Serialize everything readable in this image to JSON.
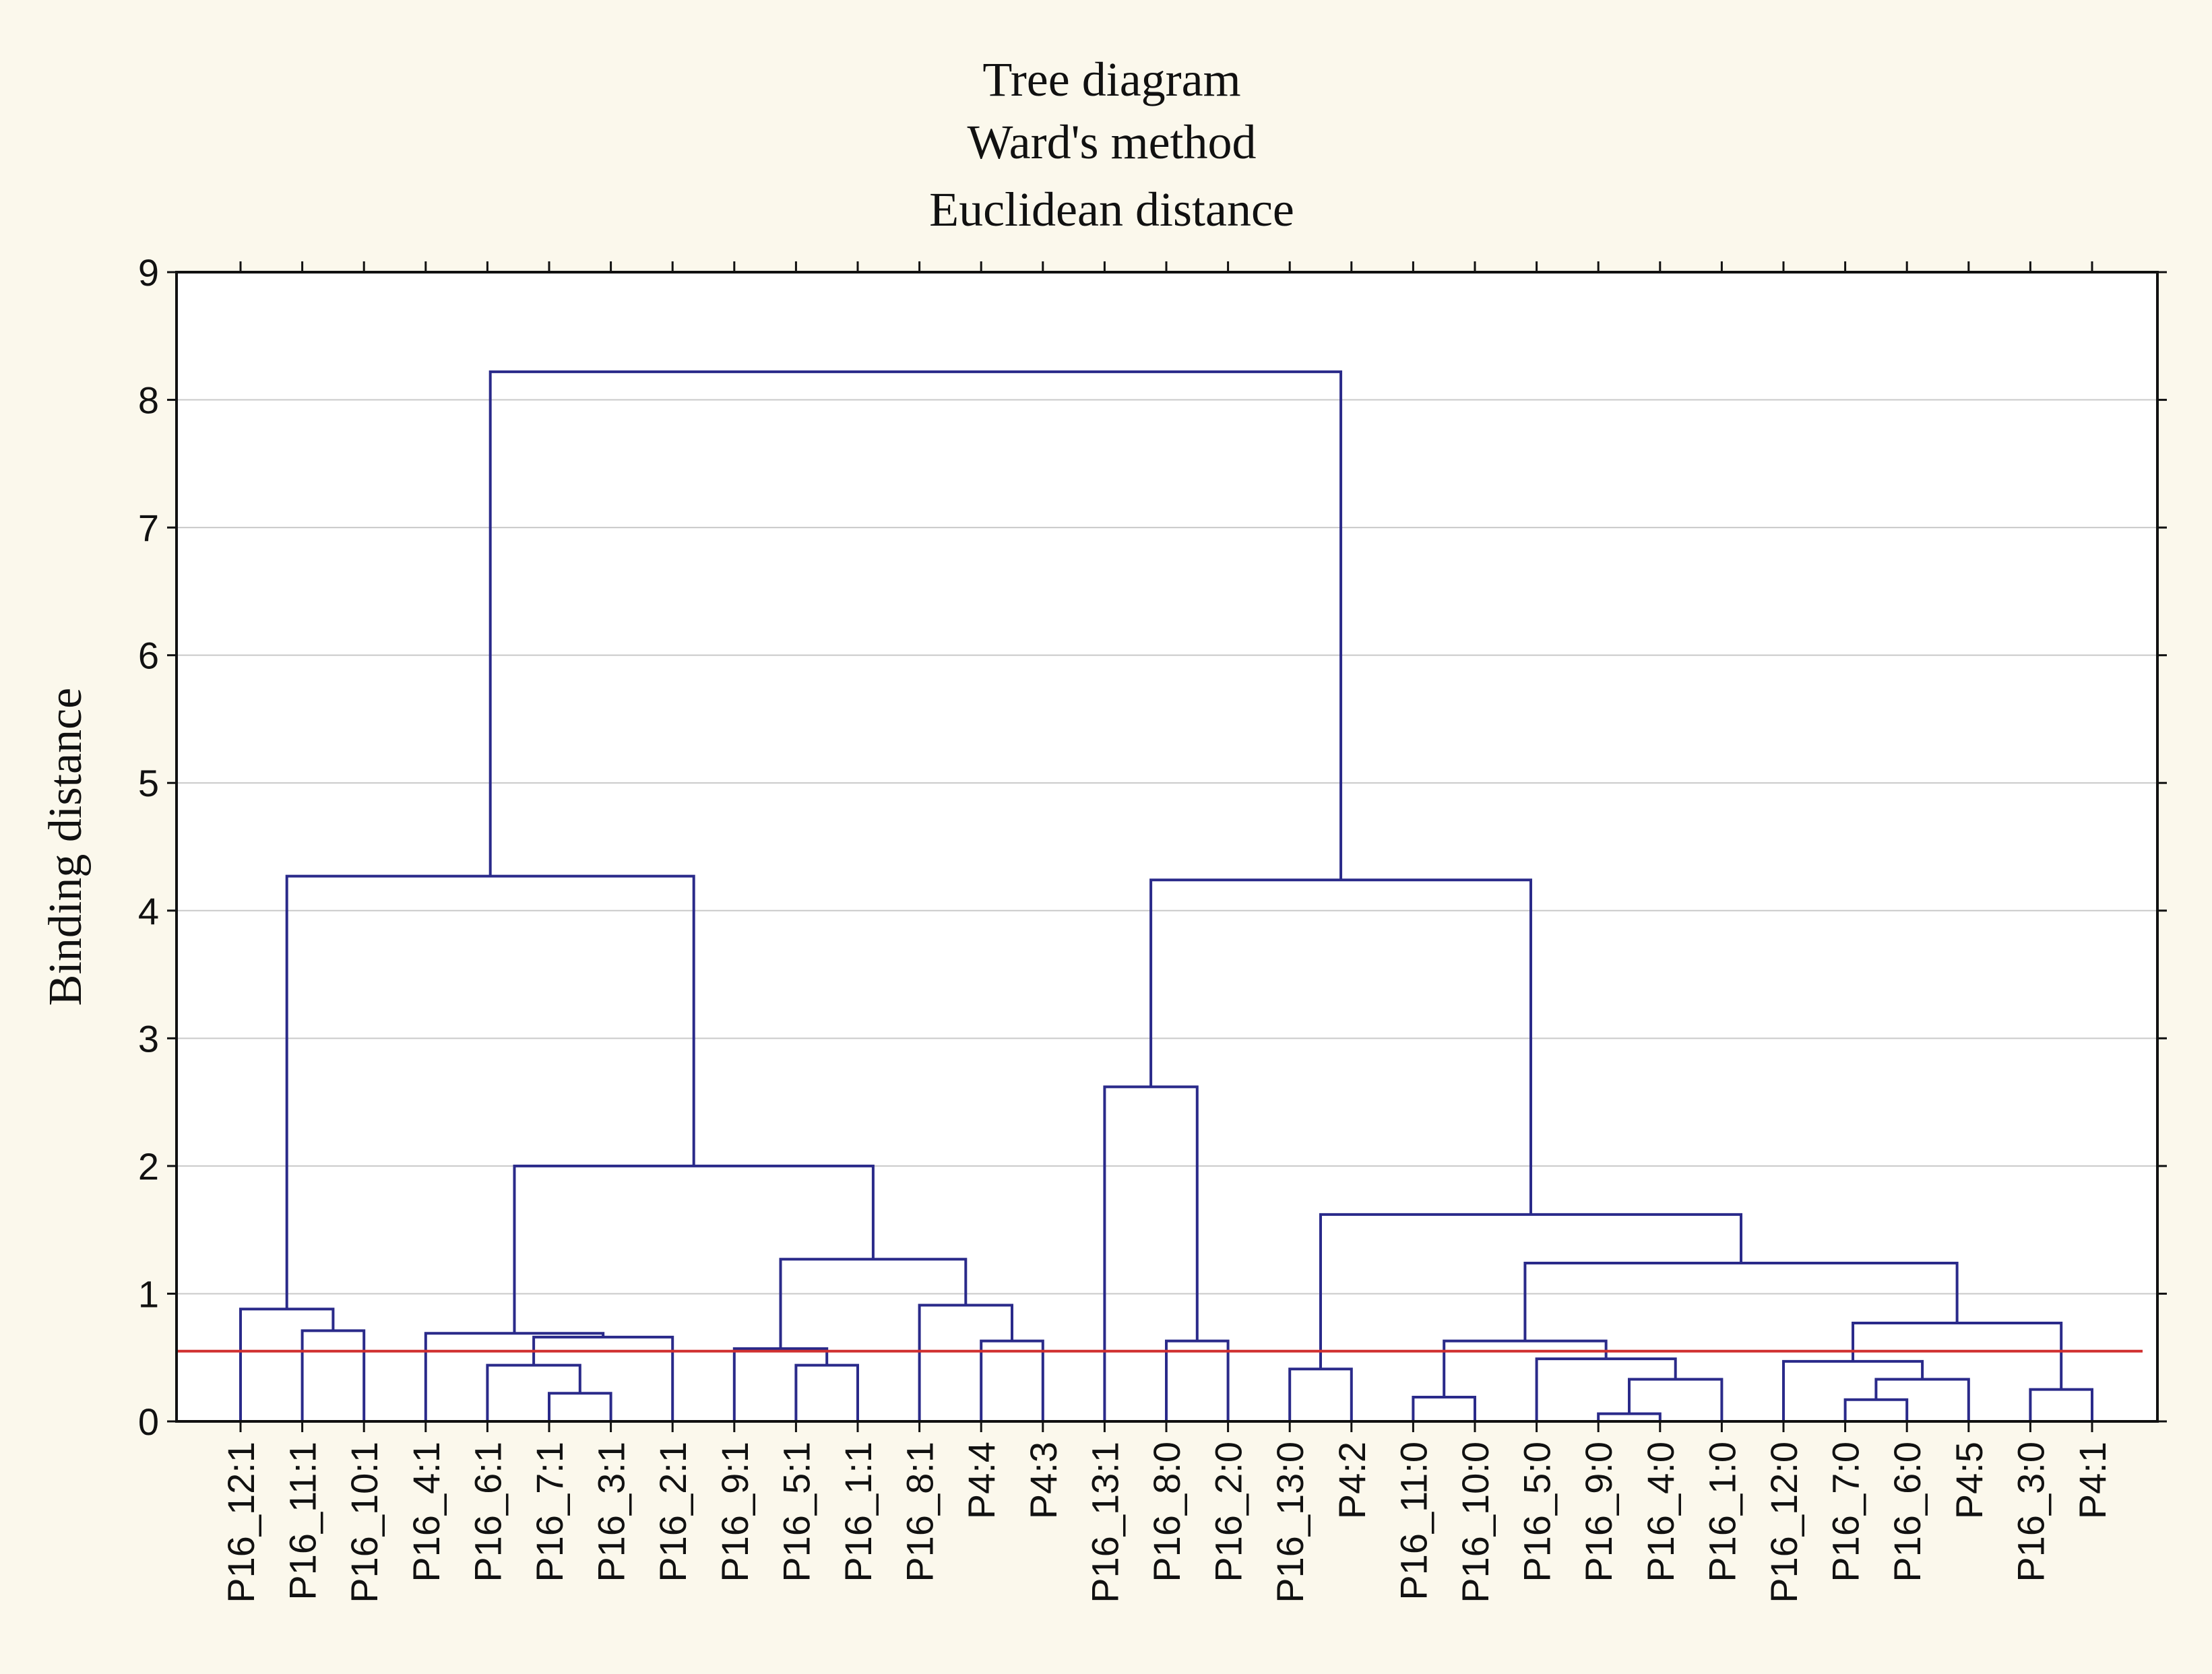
{
  "chart_data": {
    "type": "dendrogram",
    "title_lines": [
      "Tree diagram",
      "Ward's method",
      "Euclidean distance"
    ],
    "ylabel": "Binding distance",
    "ylim": [
      0,
      9
    ],
    "yticks": [
      0,
      1,
      2,
      3,
      4,
      5,
      6,
      7,
      8,
      9
    ],
    "grid": true,
    "cut_height": 0.55,
    "leaves": [
      "P16_12:1",
      "P16_11:1",
      "P16_10:1",
      "P16_4:1",
      "P16_6:1",
      "P16_7:1",
      "P16_3:1",
      "P16_2:1",
      "P16_9:1",
      "P16_5:1",
      "P16_1:1",
      "P16_8:1",
      "P4:4",
      "P4:3",
      "P16_13:1",
      "P16_8:0",
      "P16_2:0",
      "P16_13:0",
      "P4:2",
      "P16_11:0",
      "P16_10:0",
      "P16_5:0",
      "P16_9:0",
      "P16_4:0",
      "P16_1:0",
      "P16_12:0",
      "P16_7:0",
      "P16_6:0",
      "P4:5",
      "P16_3:0",
      "P4:1"
    ],
    "merges": [
      {
        "id": "m1",
        "left": "P16_11:1",
        "right": "P16_10:1",
        "height": 0.71
      },
      {
        "id": "m2",
        "left": "P16_12:1",
        "right": "m1",
        "height": 0.88
      },
      {
        "id": "m3",
        "left": "P16_7:1",
        "right": "P16_3:1",
        "height": 0.22
      },
      {
        "id": "m4",
        "left": "P16_6:1",
        "right": "m3",
        "height": 0.44
      },
      {
        "id": "m5",
        "left": "m4",
        "right": "P16_2:1",
        "height": 0.66
      },
      {
        "id": "m6",
        "left": "P16_4:1",
        "right": "m5",
        "height": 0.69
      },
      {
        "id": "m7",
        "left": "P16_5:1",
        "right": "P16_1:1",
        "height": 0.44
      },
      {
        "id": "m8",
        "left": "P16_9:1",
        "right": "m7",
        "height": 0.57
      },
      {
        "id": "m9",
        "left": "P4:4",
        "right": "P4:3",
        "height": 0.63
      },
      {
        "id": "m10",
        "left": "P16_8:1",
        "right": "m9",
        "height": 0.91
      },
      {
        "id": "m11",
        "left": "m8",
        "right": "m10",
        "height": 1.27
      },
      {
        "id": "m12",
        "left": "m6",
        "right": "m11",
        "height": 2.0
      },
      {
        "id": "m13",
        "left": "m2",
        "right": "m12",
        "height": 4.27
      },
      {
        "id": "m14",
        "left": "P16_8:0",
        "right": "P16_2:0",
        "height": 0.63
      },
      {
        "id": "m15",
        "left": "P16_13:1",
        "right": "m14",
        "height": 2.62
      },
      {
        "id": "m16",
        "left": "P16_13:0",
        "right": "P4:2",
        "height": 0.41
      },
      {
        "id": "m17",
        "left": "P16_11:0",
        "right": "P16_10:0",
        "height": 0.19
      },
      {
        "id": "m18",
        "left": "P16_9:0",
        "right": "P16_4:0",
        "height": 0.06
      },
      {
        "id": "m19",
        "left": "m18",
        "right": "P16_1:0",
        "height": 0.33
      },
      {
        "id": "m20",
        "left": "P16_5:0",
        "right": "m19",
        "height": 0.49
      },
      {
        "id": "m21",
        "left": "m17",
        "right": "m20",
        "height": 0.63
      },
      {
        "id": "m22",
        "left": "P16_7:0",
        "right": "P16_6:0",
        "height": 0.17
      },
      {
        "id": "m23",
        "left": "m22",
        "right": "P4:5",
        "height": 0.33
      },
      {
        "id": "m24",
        "left": "P16_12:0",
        "right": "m23",
        "height": 0.47
      },
      {
        "id": "m25",
        "left": "P16_3:0",
        "right": "P4:1",
        "height": 0.25
      },
      {
        "id": "m26",
        "left": "m24",
        "right": "m25",
        "height": 0.77
      },
      {
        "id": "m27",
        "left": "m21",
        "right": "m26",
        "height": 1.24
      },
      {
        "id": "m28",
        "left": "m16",
        "right": "m27",
        "height": 1.62
      },
      {
        "id": "m29",
        "left": "m15",
        "right": "m28",
        "height": 4.24
      },
      {
        "id": "m30",
        "left": "m13",
        "right": "m29",
        "height": 8.22
      }
    ]
  }
}
